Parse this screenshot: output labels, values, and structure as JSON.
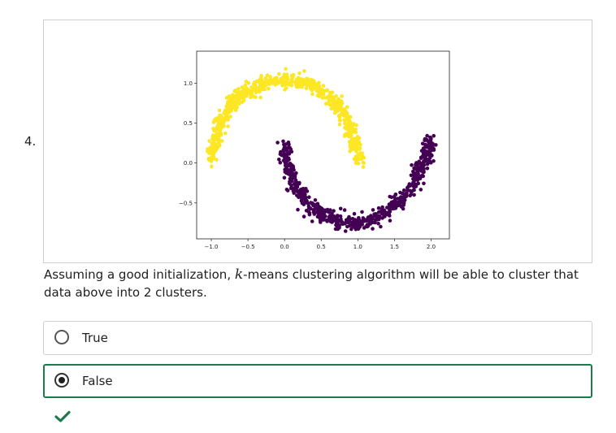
{
  "question": {
    "number": "4.",
    "text_before": "Assuming a good initialization, ",
    "variable": "k",
    "text_after": "-means clustering algorithm will be able to cluster that data above into 2 clusters."
  },
  "options": [
    {
      "label": "True",
      "selected": false
    },
    {
      "label": "False",
      "selected": true
    }
  ],
  "result": {
    "icon": "checkmark-icon",
    "color": "#1e7a4c"
  },
  "chart_data": {
    "type": "scatter",
    "title": "",
    "xlabel": "",
    "ylabel": "",
    "xlim": [
      -1.2,
      2.25
    ],
    "ylim": [
      -0.95,
      1.4
    ],
    "xticks": [
      "−1.0",
      "−0.5",
      "0.0",
      "0.5",
      "1.0",
      "1.5",
      "2.0"
    ],
    "xtick_values": [
      -1.0,
      -0.5,
      0.0,
      0.5,
      1.0,
      1.5,
      2.0
    ],
    "yticks": [
      "1.0",
      "0.5",
      "0.0",
      "−0.5"
    ],
    "ytick_values": [
      1.0,
      0.5,
      0.0,
      -0.5
    ],
    "grid": false,
    "series": [
      {
        "color": "#fde725",
        "shape": "upper moon",
        "points": [
          [
            -1.0,
            0.0
          ],
          [
            -0.95,
            0.3
          ],
          [
            -0.85,
            0.55
          ],
          [
            -0.7,
            0.75
          ],
          [
            -0.5,
            0.9
          ],
          [
            -0.3,
            1.0
          ],
          [
            0.0,
            1.05
          ],
          [
            0.3,
            1.0
          ],
          [
            0.5,
            0.9
          ],
          [
            0.7,
            0.75
          ],
          [
            0.85,
            0.55
          ],
          [
            0.95,
            0.3
          ],
          [
            1.0,
            0.0
          ]
        ]
      },
      {
        "color": "#440154",
        "shape": "lower moon",
        "points": [
          [
            0.0,
            0.25
          ],
          [
            0.05,
            -0.05
          ],
          [
            0.15,
            -0.3
          ],
          [
            0.3,
            -0.5
          ],
          [
            0.5,
            -0.65
          ],
          [
            0.75,
            -0.73
          ],
          [
            1.0,
            -0.75
          ],
          [
            1.25,
            -0.7
          ],
          [
            1.5,
            -0.55
          ],
          [
            1.7,
            -0.35
          ],
          [
            1.85,
            -0.1
          ],
          [
            1.95,
            0.1
          ],
          [
            2.0,
            0.3
          ]
        ]
      }
    ]
  }
}
